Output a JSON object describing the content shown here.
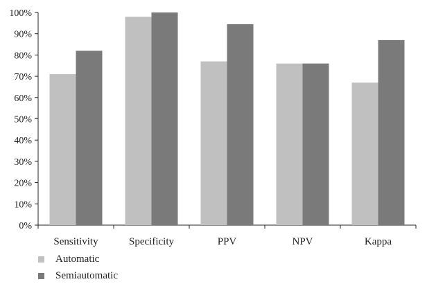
{
  "chart_data": {
    "type": "bar",
    "categories": [
      "Sensitivity",
      "Specificity",
      "PPV",
      "NPV",
      "Kappa"
    ],
    "series": [
      {
        "name": "Automatic",
        "values": [
          71,
          98,
          77,
          76,
          67
        ],
        "color": "#c0c0c0"
      },
      {
        "name": "Semiautomatic",
        "values": [
          82,
          100,
          94.5,
          76,
          87
        ],
        "color": "#7a7a7a"
      }
    ],
    "ylim": [
      0,
      100
    ],
    "yticks": [
      "0%",
      "10%",
      "20%",
      "30%",
      "40%",
      "50%",
      "60%",
      "70%",
      "80%",
      "90%",
      "100%"
    ],
    "grid": false,
    "legend_position": "bottom-left"
  }
}
